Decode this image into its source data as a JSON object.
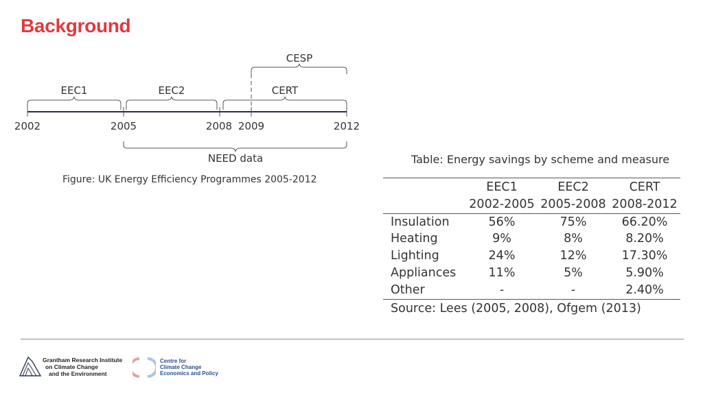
{
  "slide": {
    "title": "Background"
  },
  "timeline": {
    "programmes": {
      "cesp": "CESP",
      "eec1": "EEC1",
      "eec2": "EEC2",
      "cert": "CERT",
      "need": "NEED data"
    },
    "years": [
      "2002",
      "2005",
      "2008",
      "2009",
      "2012"
    ],
    "caption": "Figure: UK Energy Efficiency Programmes 2005-2012"
  },
  "table": {
    "caption": "Table: Energy savings by scheme and measure",
    "schemes": [
      "EEC1",
      "EEC2",
      "CERT"
    ],
    "periods": [
      "2002-2005",
      "2005-2008",
      "2008-2012"
    ],
    "rows": [
      {
        "label": "Insulation",
        "values": [
          "56%",
          "75%",
          "66.20%"
        ]
      },
      {
        "label": "Heating",
        "values": [
          "9%",
          "8%",
          "8.20%"
        ]
      },
      {
        "label": "Lighting",
        "values": [
          "24%",
          "12%",
          "17.30%"
        ]
      },
      {
        "label": "Appliances",
        "values": [
          "11%",
          "5%",
          "5.90%"
        ]
      },
      {
        "label": "Other",
        "values": [
          "-",
          "-",
          "2.40%"
        ]
      }
    ],
    "source": "Source:  Lees (2005, 2008), Ofgem (2013)"
  },
  "footer": {
    "logo1_lines": [
      "Grantham Research Institute",
      "on Climate Change",
      "and the Environment"
    ],
    "logo2_lines": [
      "Centre for",
      "Climate Change",
      "Economics and Policy"
    ]
  },
  "colors": {
    "title": "#e03a3e",
    "text": "#333333",
    "logo2_text": "#2b4d8f"
  }
}
